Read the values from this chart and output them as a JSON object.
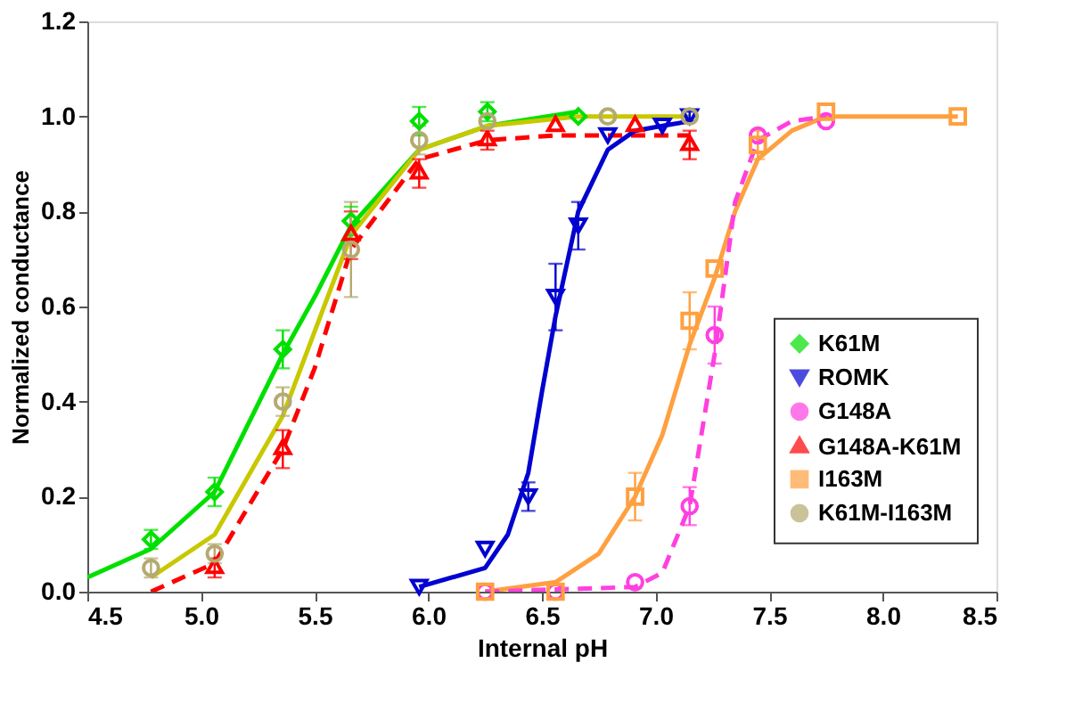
{
  "chart_data": {
    "type": "scatter",
    "xlabel": "Internal pH",
    "ylabel": "Normalized conductance",
    "xlim": [
      4.5,
      8.5
    ],
    "ylim": [
      0,
      1.2
    ],
    "xticks": [
      {
        "value": 4.5,
        "label": "4.5"
      },
      {
        "value": 5,
        "label": "5.0"
      },
      {
        "value": 5.5,
        "label": "5.5"
      },
      {
        "value": 6,
        "label": "6.0"
      },
      {
        "value": 6.5,
        "label": "6.5"
      },
      {
        "value": 7,
        "label": "7.0"
      },
      {
        "value": 7.5,
        "label": "7.5"
      },
      {
        "value": 8,
        "label": "8.0"
      },
      {
        "value": 8.5,
        "label": "8.5"
      }
    ],
    "yticks": [
      {
        "value": 0,
        "label": "0.0"
      },
      {
        "value": 0.2,
        "label": "0.2"
      },
      {
        "value": 0.4,
        "label": "0.4"
      },
      {
        "value": 0.6,
        "label": "0.6"
      },
      {
        "value": 0.8,
        "label": "0.8"
      },
      {
        "value": 1,
        "label": "1.0"
      },
      {
        "value": 1.2,
        "label": "1.2"
      }
    ],
    "grid": false,
    "legend": "right",
    "series": [
      {
        "type": "line",
        "color": "#00e000",
        "line_style": "solid",
        "x": [
          4.5,
          4.78,
          5.06,
          5.36,
          5.5,
          5.66,
          5.96,
          6.26,
          6.66
        ],
        "values": [
          0.03,
          0.09,
          0.21,
          0.5,
          0.62,
          0.77,
          0.93,
          0.98,
          1.01
        ]
      },
      {
        "type": "line",
        "color": "#c8c800",
        "line_style": "solid",
        "x": [
          4.78,
          5.06,
          5.36,
          5.66,
          5.96,
          6.26,
          6.66,
          7.15
        ],
        "values": [
          0.03,
          0.12,
          0.37,
          0.75,
          0.93,
          0.98,
          1.0,
          1.0
        ]
      },
      {
        "type": "line",
        "color": "#ff0000",
        "line_style": "dashed",
        "x": [
          4.78,
          5.06,
          5.36,
          5.5,
          5.66,
          5.96,
          6.26,
          6.56,
          7.15
        ],
        "values": [
          0.0,
          0.06,
          0.3,
          0.47,
          0.72,
          0.91,
          0.95,
          0.96,
          0.96
        ]
      },
      {
        "type": "line",
        "color": "#0000d0",
        "line_style": "solid",
        "x": [
          5.96,
          6.25,
          6.35,
          6.44,
          6.5,
          6.56,
          6.66,
          6.79,
          6.91,
          7.03,
          7.15
        ],
        "values": [
          0.01,
          0.05,
          0.12,
          0.25,
          0.42,
          0.58,
          0.8,
          0.93,
          0.97,
          0.98,
          0.99
        ]
      },
      {
        "type": "line",
        "color": "#ffa040",
        "line_style": "solid",
        "x": [
          6.25,
          6.56,
          6.75,
          6.91,
          7.03,
          7.15,
          7.26,
          7.35,
          7.45,
          7.6,
          7.75,
          8.33
        ],
        "values": [
          0.0,
          0.02,
          0.08,
          0.2,
          0.33,
          0.52,
          0.66,
          0.8,
          0.91,
          0.97,
          1.0,
          1.0
        ]
      },
      {
        "type": "line",
        "color": "#ff40e0",
        "line_style": "dashed",
        "x": [
          6.25,
          6.91,
          7.03,
          7.15,
          7.26,
          7.35,
          7.45,
          7.6,
          7.75
        ],
        "values": [
          0.0,
          0.01,
          0.04,
          0.18,
          0.5,
          0.82,
          0.95,
          0.99,
          1.0
        ]
      },
      {
        "name": "K61M",
        "color": "#00e000",
        "marker": "diamond",
        "x": [
          4.78,
          5.06,
          5.36,
          5.66,
          5.96,
          6.26,
          6.66
        ],
        "values": [
          0.11,
          0.21,
          0.51,
          0.78,
          0.99,
          1.01,
          1.0
        ],
        "errors": [
          0.02,
          0.03,
          0.04,
          0.03,
          0.03,
          0.02,
          null
        ]
      },
      {
        "name": "ROMK",
        "color": "#0000d0",
        "marker": "triangle-down",
        "x": [
          5.96,
          6.25,
          6.44,
          6.56,
          6.66,
          6.79,
          7.03,
          7.15
        ],
        "values": [
          0.01,
          0.09,
          0.2,
          0.62,
          0.77,
          0.96,
          0.98,
          1.0
        ],
        "errors": [
          null,
          null,
          0.03,
          0.07,
          0.05,
          null,
          null,
          0.01
        ]
      },
      {
        "name": "G148A",
        "color": "#ff40e0",
        "marker": "circle",
        "x": [
          6.25,
          6.56,
          6.91,
          7.15,
          7.26,
          7.45,
          7.75
        ],
        "values": [
          0.0,
          0.0,
          0.02,
          0.18,
          0.54,
          0.96,
          0.99
        ],
        "errors": [
          null,
          null,
          null,
          0.04,
          0.06,
          null,
          null
        ]
      },
      {
        "name": "G148A-K61M",
        "color": "#ff0000",
        "marker": "triangle",
        "x": [
          5.06,
          5.36,
          5.66,
          5.96,
          6.26,
          6.56,
          6.91,
          7.15
        ],
        "values": [
          0.05,
          0.3,
          0.75,
          0.88,
          0.95,
          0.98,
          0.98,
          0.94
        ],
        "errors": [
          0.02,
          0.04,
          0.05,
          0.03,
          0.02,
          null,
          null,
          0.03
        ]
      },
      {
        "name": "I163M",
        "color": "#ffa040",
        "marker": "square",
        "x": [
          6.25,
          6.56,
          6.91,
          7.15,
          7.26,
          7.45,
          7.75,
          8.33
        ],
        "values": [
          0.0,
          0.0,
          0.2,
          0.57,
          0.68,
          0.94,
          1.01,
          1.0
        ],
        "errors": [
          null,
          null,
          0.05,
          0.06,
          null,
          0.03,
          null,
          null
        ]
      },
      {
        "name": "K61M-I163M",
        "color": "#b4aa70",
        "marker": "circle",
        "x": [
          4.78,
          5.06,
          5.36,
          5.66,
          5.96,
          6.26,
          6.79,
          7.15
        ],
        "values": [
          0.05,
          0.08,
          0.4,
          0.72,
          0.95,
          0.99,
          1.0,
          1.0
        ],
        "errors": [
          0.02,
          0.02,
          0.03,
          0.1,
          0.03,
          null,
          null,
          null
        ]
      }
    ]
  }
}
